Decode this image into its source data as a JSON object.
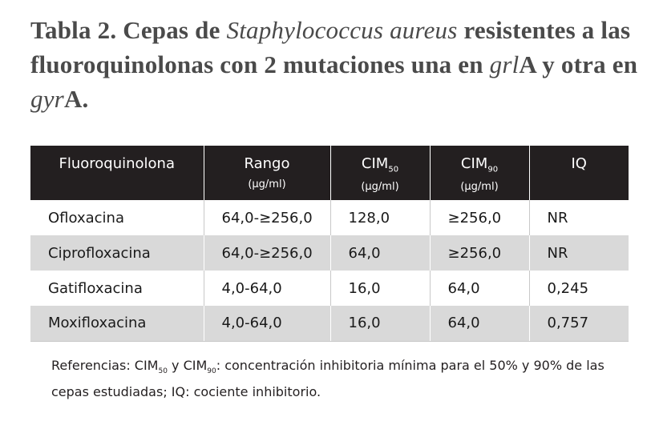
{
  "title": {
    "prefix": "Tabla 2. Cepas de ",
    "organism": "Staphylococcus aureus",
    "middle": " resistentes a las fluoroquinolonas con 2 mutaciones una en ",
    "gene1": "grl",
    "gene1_suffix": "A",
    "connector": " y otra en ",
    "gene2": "gyr",
    "gene2_suffix": "A."
  },
  "table": {
    "headers": {
      "fluoroquinolona": "Fluoroquinolona",
      "rango": "Rango",
      "rango_unit": "(µg/ml)",
      "cim50_base": "CIM",
      "cim50_sub": "50",
      "cim50_unit": "(µg/ml)",
      "cim90_base": "CIM",
      "cim90_sub": "90",
      "cim90_unit": "(µg/ml)",
      "iq": "IQ"
    },
    "rows": [
      {
        "drug": "Ofloxacina",
        "rango": "64,0-≥256,0",
        "cim50": "128,0",
        "cim90": "≥256,0",
        "iq": "NR"
      },
      {
        "drug": "Ciprofloxacina",
        "rango": "64,0-≥256,0",
        "cim50": "64,0",
        "cim90": "≥256,0",
        "iq": "NR"
      },
      {
        "drug": "Gatifloxacina",
        "rango": "4,0-64,0",
        "cim50": "16,0",
        "cim90": "64,0",
        "iq": "0,245"
      },
      {
        "drug": "Moxifloxacina",
        "rango": "4,0-64,0",
        "cim50": "16,0",
        "cim90": "64,0",
        "iq": "0,757"
      }
    ]
  },
  "footnote": {
    "part1": "Referencias: CIM",
    "sub1": "50",
    "part2": " y CIM",
    "sub2": "90",
    "part3": ": concentración inhibitoria mínima para el 50%  y 90% de las cepas estudiadas; IQ: cociente inhibitorio."
  }
}
